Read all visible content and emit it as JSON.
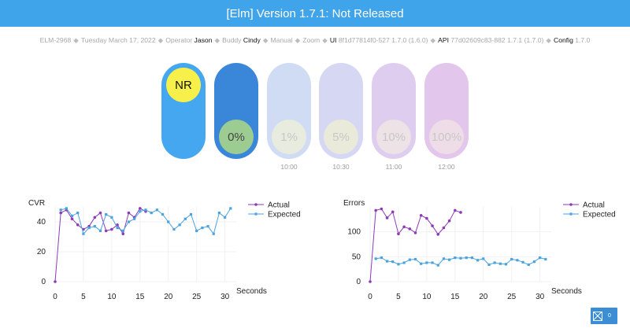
{
  "header": {
    "title": "[Elm] Version 1.7.1: Not Released"
  },
  "info": {
    "id": "ELM-2968",
    "date": "Tuesday March 17, 2022",
    "operator_label": "Operator",
    "operator": "Jason",
    "buddy_label": "Buddy",
    "buddy": "Cindy",
    "manual_label": "Manual",
    "zoom_label": "Zoom",
    "ui_label": "UI",
    "ui_value": "8f1d77814f0-527 1.7.0 (1.6.0)",
    "api_label": "API",
    "api_value": "77d02609c83-882 1.7.1 (1.7.0)",
    "config_label": "Config",
    "config_value": "1.7.0"
  },
  "stages": [
    {
      "label": "NR",
      "time": "",
      "fill": "#45a7ef",
      "pip": "#f7f04a",
      "pip_pos": "top",
      "text": "#111"
    },
    {
      "label": "0%",
      "time": "",
      "fill": "#3a86d9",
      "pip": "#9dcc93",
      "pip_pos": "bottom",
      "text": "#444"
    },
    {
      "label": "1%",
      "time": "10:00",
      "fill": "#cfdcf3",
      "pip": "#e7ecde",
      "pip_pos": "bottom",
      "text": "#c8c8c8"
    },
    {
      "label": "5%",
      "time": "10:30",
      "fill": "#d6d7f2",
      "pip": "#e9ead9",
      "pip_pos": "bottom",
      "text": "#c8c8c8"
    },
    {
      "label": "10%",
      "time": "11:00",
      "fill": "#dfcdef",
      "pip": "#ede2e6",
      "pip_pos": "bottom",
      "text": "#c8c8c8"
    },
    {
      "label": "100%",
      "time": "12:00",
      "fill": "#e3c6eb",
      "pip": "#eedde6",
      "pip_pos": "bottom",
      "text": "#c8c8c8"
    }
  ],
  "badge": {
    "count": "0",
    "icon": "bug-icon"
  },
  "chart_data": [
    {
      "type": "line",
      "ylabel": "CVR",
      "xlabel": "Seconds",
      "xlim": [
        0,
        32
      ],
      "ylim": [
        0,
        50
      ],
      "xticks": [
        0,
        5,
        10,
        15,
        20,
        25,
        30
      ],
      "yticks": [
        0,
        20,
        40
      ],
      "legend_position": "top-right",
      "series": [
        {
          "name": "Actual",
          "color": "#8e3bb8",
          "x": [
            0,
            1,
            2,
            3,
            4,
            5,
            6,
            7,
            8,
            9,
            10,
            11,
            12,
            13,
            14,
            15,
            16
          ],
          "y": [
            0,
            46,
            48,
            42,
            38,
            35,
            37,
            43,
            46,
            34,
            35,
            38,
            32,
            46,
            43,
            49,
            47
          ]
        },
        {
          "name": "Expected",
          "color": "#4aa3df",
          "x": [
            1,
            2,
            3,
            4,
            5,
            6,
            7,
            8,
            9,
            10,
            11,
            12,
            13,
            14,
            15,
            16,
            17,
            18,
            19,
            20,
            21,
            22,
            23,
            24,
            25,
            26,
            27,
            28,
            29,
            30,
            31
          ],
          "y": [
            48,
            49,
            44,
            46,
            32,
            36,
            37,
            34,
            45,
            43,
            36,
            34,
            40,
            42,
            47,
            48,
            46,
            48,
            45,
            40,
            35,
            38,
            42,
            45,
            34,
            36,
            37,
            32,
            46,
            43,
            49
          ]
        }
      ]
    },
    {
      "type": "line",
      "ylabel": "Errors",
      "xlabel": "Seconds",
      "xlim": [
        0,
        32
      ],
      "ylim": [
        0,
        150
      ],
      "xticks": [
        0,
        5,
        10,
        15,
        20,
        25,
        30
      ],
      "yticks": [
        0,
        50,
        100
      ],
      "legend_position": "top-right",
      "series": [
        {
          "name": "Actual",
          "color": "#8e3bb8",
          "x": [
            0,
            1,
            2,
            3,
            4,
            5,
            6,
            7,
            8,
            9,
            10,
            11,
            12,
            13,
            14,
            15,
            16
          ],
          "y": [
            0,
            143,
            146,
            128,
            140,
            96,
            110,
            106,
            98,
            133,
            127,
            112,
            95,
            108,
            122,
            143,
            139
          ]
        },
        {
          "name": "Expected",
          "color": "#4aa3df",
          "x": [
            1,
            2,
            3,
            4,
            5,
            6,
            7,
            8,
            9,
            10,
            11,
            12,
            13,
            14,
            15,
            16,
            17,
            18,
            19,
            20,
            21,
            22,
            23,
            24,
            25,
            26,
            27,
            28,
            29,
            30,
            31
          ],
          "y": [
            46,
            48,
            41,
            40,
            35,
            38,
            44,
            45,
            36,
            38,
            38,
            33,
            46,
            44,
            48,
            47,
            48,
            48,
            43,
            46,
            34,
            38,
            36,
            35,
            45,
            43,
            39,
            34,
            40,
            48,
            45
          ]
        }
      ]
    }
  ]
}
